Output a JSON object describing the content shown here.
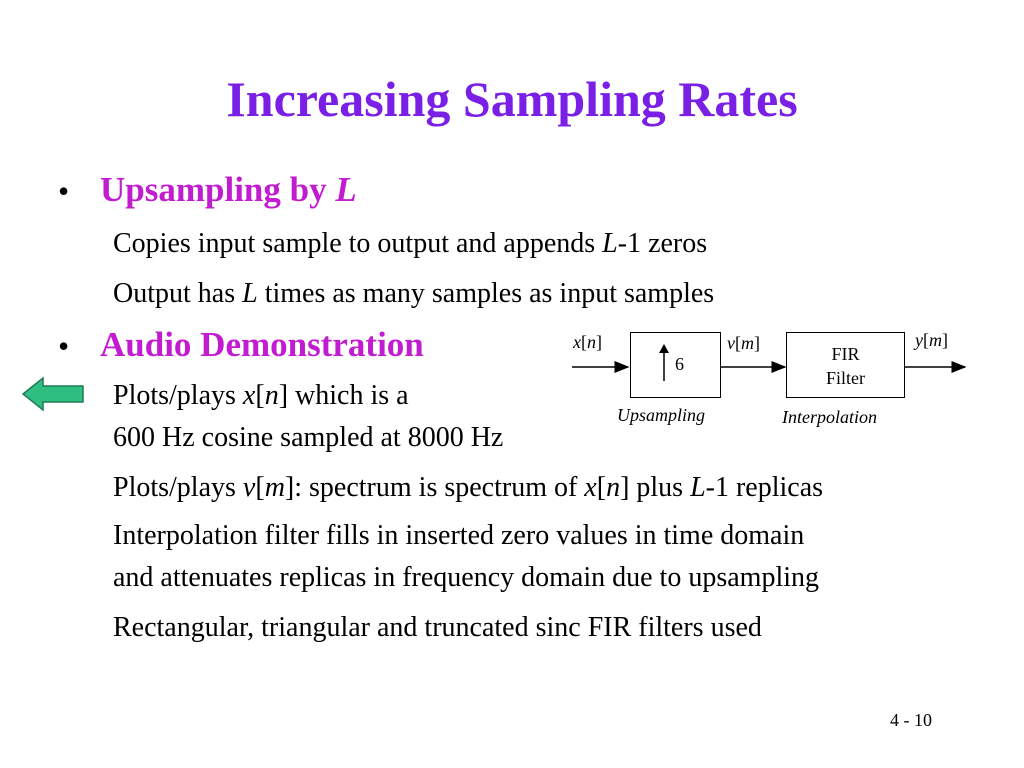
{
  "colors": {
    "title": "#7a1fe6",
    "heading": "#c21cd1",
    "arrow_fill": "#2fbf83"
  },
  "title": "Increasing Sampling Rates",
  "bullet_glyph": "•",
  "section1": {
    "heading_text": "Upsampling by ",
    "heading_var": "L",
    "lines": [
      {
        "a": "Copies input sample to output and appends ",
        "v": "L",
        "b": "-1 zeros"
      },
      {
        "a": "Output has ",
        "v": "L",
        "b": " times as many samples as input samples"
      }
    ]
  },
  "section2": {
    "heading": "Audio Demonstration",
    "plot_x": {
      "a": "Plots/plays ",
      "v": "x",
      "b": "[",
      "n": "n",
      "c": "] which is a"
    },
    "plot_x_line2": "600 Hz cosine sampled at 8000 Hz",
    "plot_v": {
      "a": "Plots/plays ",
      "v": "v",
      "b": "[",
      "m": "m",
      "c": "]: spectrum is spectrum of ",
      "x": "x",
      "d": "[",
      "n": "n",
      "e": "] plus ",
      "L": "L",
      "f": "-1 replicas"
    },
    "interp_line1": "Interpolation filter fills in inserted zero values in time domain",
    "interp_line2": "and attenuates replicas in frequency domain due to upsampling",
    "rect_line": "Rectangular, triangular and truncated sinc FIR filters used"
  },
  "diagram": {
    "input_label": {
      "v": "x",
      "open": "[",
      "idx": "n",
      "close": "]"
    },
    "mid_label": {
      "v": "v",
      "open": "[",
      "idx": "m",
      "close": "]"
    },
    "output_label": {
      "v": "y",
      "open": "[",
      "idx": "m",
      "close": "]"
    },
    "upsample_factor": "6",
    "upsample_caption": "Upsampling",
    "fir_line1": "FIR",
    "fir_line2": "Filter",
    "fir_caption": "Interpolation"
  },
  "nav_arrow_icon": "left-arrow-icon",
  "page_number": "4 - 10"
}
